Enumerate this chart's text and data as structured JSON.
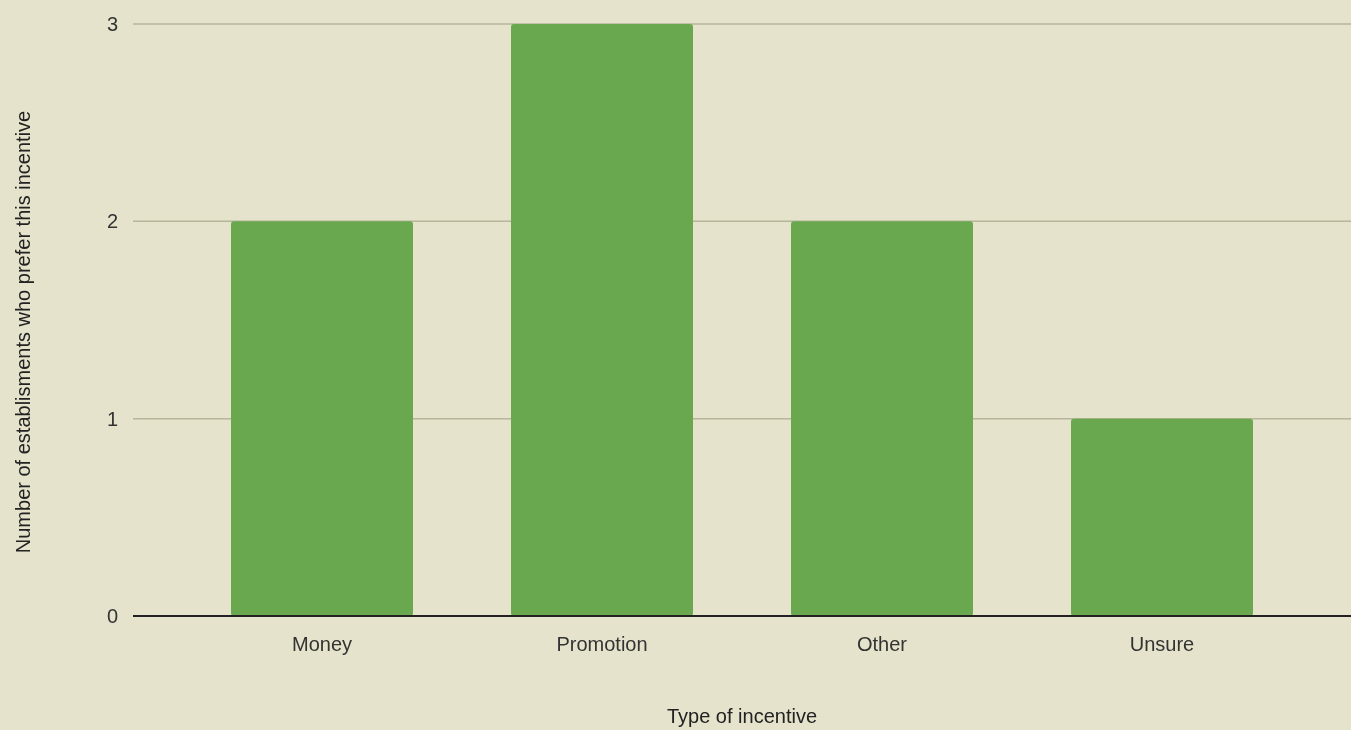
{
  "chart_data": {
    "type": "bar",
    "xlabel": "Type of incentive",
    "ylabel": "Number of establisments who prefer this incentive",
    "categories": [
      "Money",
      "Promotion",
      "Other",
      "Unsure"
    ],
    "values": [
      2,
      3,
      2,
      1
    ],
    "color": "#6aa84f",
    "ylim": [
      0,
      3
    ],
    "yticks": [
      0,
      1,
      2,
      3
    ],
    "grid": "y"
  }
}
